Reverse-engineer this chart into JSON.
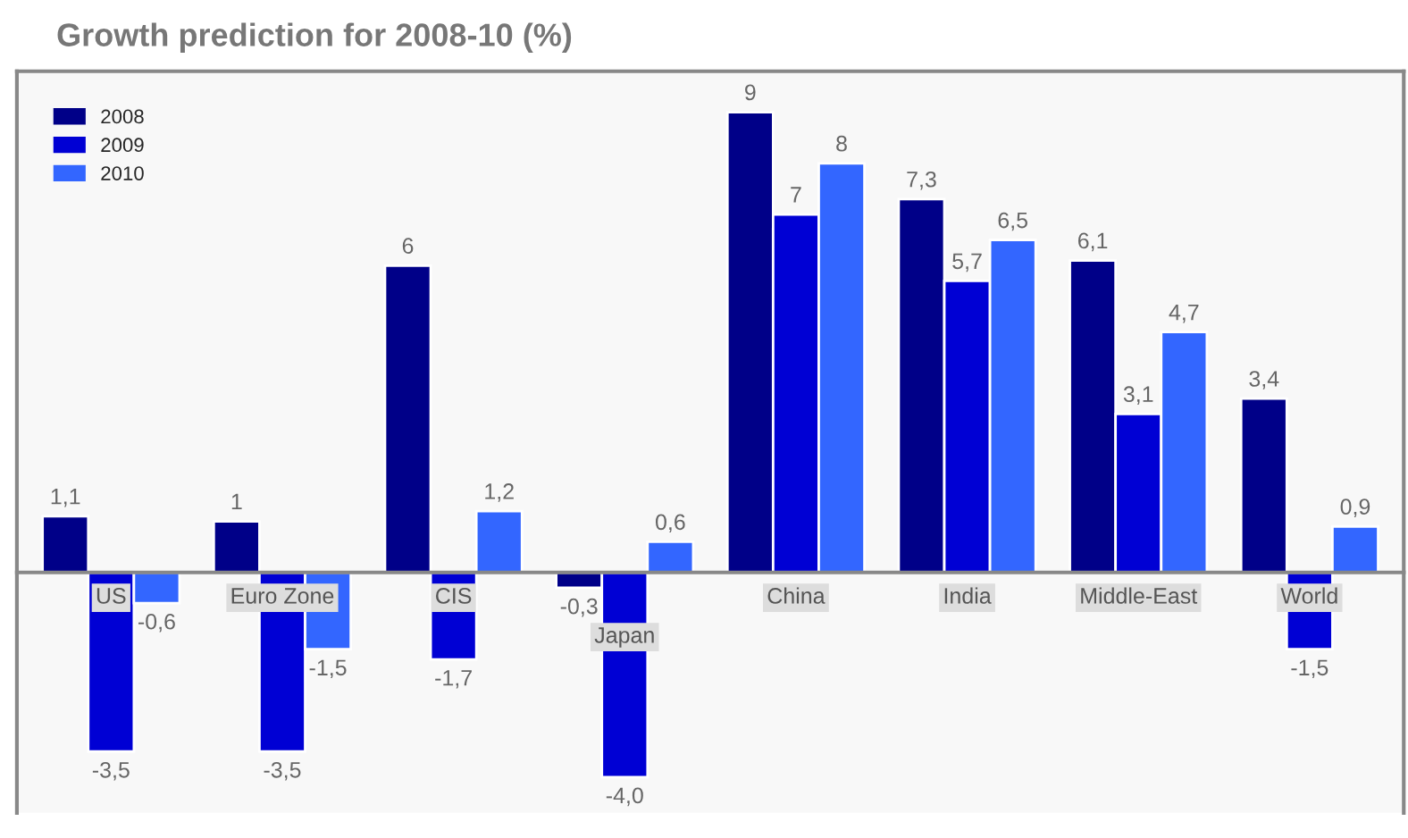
{
  "chart_data": {
    "type": "bar",
    "title": "Growth prediction for 2008-10 (%)",
    "categories": [
      "US",
      "Euro Zone",
      "CIS",
      "Japan",
      "China",
      "India",
      "Middle-East",
      "World"
    ],
    "series": [
      {
        "name": "2008",
        "color": "#000088",
        "values": [
          1.1,
          1,
          6,
          -0.3,
          9,
          7.3,
          6.1,
          3.4
        ],
        "value_labels": [
          "1,1",
          "1",
          "6",
          "-0,3",
          "9",
          "7,3",
          "6,1",
          "3,4"
        ]
      },
      {
        "name": "2009",
        "color": "#0000d4",
        "values": [
          -3.5,
          -3.5,
          -1.7,
          -4.0,
          7,
          5.7,
          3.1,
          -1.5
        ],
        "value_labels": [
          "-3,5",
          "-3,5",
          "-1,7",
          "-4,0",
          "7",
          "5,7",
          "3,1",
          "-1,5"
        ]
      },
      {
        "name": "2010",
        "color": "#3366ff",
        "values": [
          -0.6,
          -1.5,
          1.2,
          0.6,
          8,
          6.5,
          4.7,
          0.9
        ],
        "value_labels": [
          "-0,6",
          "-1,5",
          "1,2",
          "0,6",
          "8",
          "6,5",
          "4,7",
          "0,9"
        ]
      }
    ],
    "ylim": [
      -4.7,
      9.8
    ],
    "tick_labels": "x",
    "legend": "top left",
    "grid": false
  }
}
